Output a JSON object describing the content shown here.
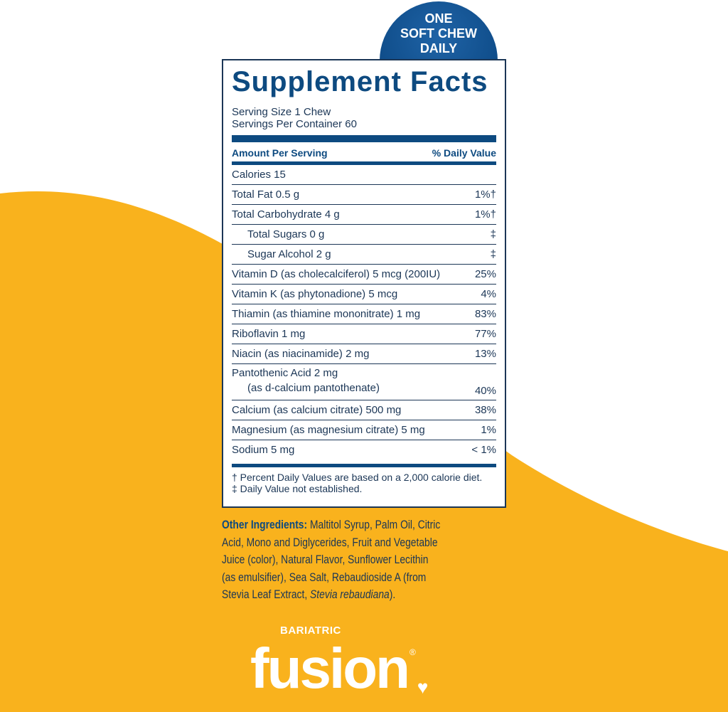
{
  "colors": {
    "navy": "#0d4a80",
    "yellow": "#f9b21d",
    "text": "#1b3656"
  },
  "badge": [
    "ONE",
    "SOFT CHEW",
    "DAILY"
  ],
  "title": "Supplement Facts",
  "serving_size": "Serving Size 1 Chew",
  "servings_per_container": "Servings Per Container 60",
  "header": {
    "amount": "Amount Per Serving",
    "dv": "% Daily Value"
  },
  "rows": [
    {
      "name": "Calories 15",
      "dv": ""
    },
    {
      "name": "Total Fat 0.5 g",
      "dv": "1%†"
    },
    {
      "name": "Total Carbohydrate 4 g",
      "dv": "1%†"
    },
    {
      "name": "Total Sugars 0 g",
      "dv": "‡"
    },
    {
      "name": "Sugar Alcohol 2 g",
      "dv": "‡"
    },
    {
      "name": "Vitamin D (as cholecalciferol) 5 mcg (200IU)",
      "dv": "25%"
    },
    {
      "name": "Vitamin K (as phytonadione) 5 mcg",
      "dv": "4%"
    },
    {
      "name": "Thiamin (as thiamine mononitrate) 1 mg",
      "dv": "83%"
    },
    {
      "name": "Riboflavin 1 mg",
      "dv": "77%"
    },
    {
      "name": "Niacin (as niacinamide) 2 mg",
      "dv": "13%"
    },
    {
      "name": "Pantothenic Acid 2 mg",
      "name2": "(as d-calcium pantothenate)",
      "dv": "40%"
    },
    {
      "name": "Calcium (as calcium citrate) 500 mg",
      "dv": "38%"
    },
    {
      "name": "Magnesium (as magnesium citrate) 5 mg",
      "dv": "1%"
    },
    {
      "name": "Sodium 5 mg",
      "dv": "< 1%"
    }
  ],
  "footnotes": [
    "† Percent Daily Values are based on a 2,000 calorie diet.",
    "‡ Daily Value not established."
  ],
  "ingredients": {
    "label": "Other Ingredients:",
    "text": " Maltitol Syrup, Palm Oil, Citric Acid, Mono and Diglycerides, Fruit and Vegetable Juice (color), Natural Flavor, Sunflower Lecithin (as emulsifier), Sea Salt,  Rebaudioside A (from Stevia Leaf Extract, ",
    "italic": "Stevia rebaudiana",
    "end": ")."
  },
  "logo": {
    "small": "BARIATRIC",
    "big": "fusion",
    "mark": "®"
  }
}
